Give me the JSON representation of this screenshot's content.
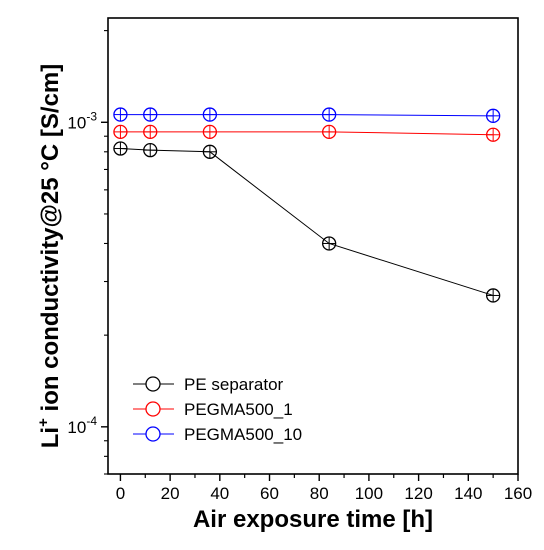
{
  "chart_data": {
    "type": "scatter",
    "xlabel": "Air exposure time [h]",
    "ylabel_main": "Li",
    "ylabel_sup": "+",
    "ylabel_rest": " ion conductivity@25 °C [S/cm]",
    "xlim": [
      -5,
      160
    ],
    "ylim": [
      7e-05,
      0.0022
    ],
    "yscale": "log",
    "grid": false,
    "legend_position": "bottom-left",
    "x_ticks": [
      0,
      20,
      40,
      60,
      80,
      100,
      120,
      140,
      160
    ],
    "x_tick_labels": [
      "0",
      "20",
      "40",
      "60",
      "80",
      "100",
      "120",
      "140",
      "160"
    ],
    "y_ticks": [
      0.0001,
      0.001
    ],
    "y_tick_base": [
      "10",
      "10"
    ],
    "y_tick_exp": [
      "-4",
      "-3"
    ],
    "series": [
      {
        "name": "PE separator",
        "color": "#000000",
        "x": [
          0,
          12,
          36,
          84,
          150
        ],
        "y": [
          0.00082,
          0.00081,
          0.0008,
          0.0004,
          0.00027
        ]
      },
      {
        "name": "PEGMA500_1",
        "color": "#ff0000",
        "x": [
          0,
          12,
          36,
          84,
          150
        ],
        "y": [
          0.00093,
          0.00093,
          0.00093,
          0.00093,
          0.00091
        ]
      },
      {
        "name": "PEGMA500_10",
        "color": "#0000ff",
        "x": [
          0,
          12,
          36,
          84,
          150
        ],
        "y": [
          0.00106,
          0.00106,
          0.00106,
          0.00106,
          0.00105
        ]
      }
    ]
  }
}
